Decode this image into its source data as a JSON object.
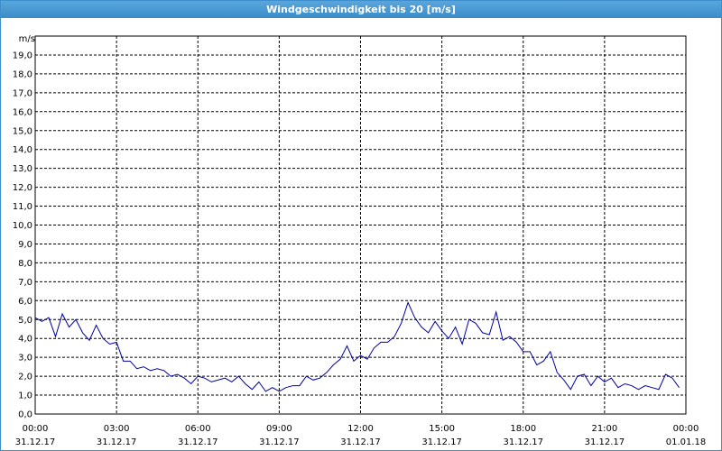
{
  "chart_data": {
    "type": "line",
    "title": "Windgeschwindigkeit bis 20 [m/s]",
    "y_label": "m/s",
    "x": [
      0,
      0.25,
      0.5,
      0.75,
      1,
      1.25,
      1.5,
      1.75,
      2,
      2.25,
      2.5,
      2.75,
      3,
      3.25,
      3.5,
      3.75,
      4,
      4.25,
      4.5,
      4.75,
      5,
      5.25,
      5.5,
      5.75,
      6,
      6.25,
      6.5,
      6.75,
      7,
      7.25,
      7.5,
      7.75,
      8,
      8.25,
      8.5,
      8.75,
      9,
      9.25,
      9.5,
      9.75,
      10,
      10.25,
      10.5,
      10.75,
      11,
      11.25,
      11.5,
      11.75,
      12,
      12.25,
      12.5,
      12.75,
      13,
      13.25,
      13.5,
      13.75,
      14,
      14.25,
      14.5,
      14.75,
      15,
      15.25,
      15.5,
      15.75,
      16,
      16.25,
      16.5,
      16.75,
      17,
      17.25,
      17.5,
      17.75,
      18,
      18.25,
      18.5,
      18.75,
      19,
      19.25,
      19.5,
      19.75,
      20,
      20.25,
      20.5,
      20.75,
      21,
      21.25,
      21.5,
      21.75,
      22,
      22.25,
      22.5,
      22.75,
      23,
      23.25,
      23.5,
      23.75
    ],
    "series": [
      {
        "name": "Windgeschwindigkeit",
        "color": "#0000a0",
        "values": [
          5.1,
          4.9,
          5.1,
          4.1,
          5.3,
          4.6,
          5.0,
          4.3,
          3.9,
          4.7,
          4.0,
          3.7,
          3.8,
          2.8,
          2.8,
          2.4,
          2.5,
          2.3,
          2.4,
          2.3,
          2.0,
          2.1,
          1.9,
          1.6,
          2.0,
          1.9,
          1.7,
          1.8,
          1.9,
          1.7,
          2.0,
          1.6,
          1.3,
          1.7,
          1.2,
          1.4,
          1.2,
          1.4,
          1.5,
          1.5,
          2.0,
          1.8,
          1.9,
          2.2,
          2.6,
          2.9,
          3.6,
          2.8,
          3.1,
          2.9,
          3.5,
          3.8,
          3.8,
          4.1,
          4.8,
          5.9,
          5.1,
          4.6,
          4.3,
          4.9,
          4.4,
          4.0,
          4.6,
          3.7,
          5.0,
          4.8,
          4.3,
          4.2,
          5.4,
          3.9,
          4.1,
          3.8,
          3.3,
          3.3,
          2.6,
          2.8,
          3.3,
          2.2,
          1.8,
          1.3,
          2.0,
          2.1,
          1.5,
          2.0,
          1.7,
          1.9,
          1.4,
          1.6,
          1.5,
          1.3,
          1.5,
          1.4,
          1.3,
          2.1,
          1.9,
          1.4
        ]
      }
    ],
    "xlim": [
      0,
      24
    ],
    "xticks": [
      {
        "value": 0,
        "label": "00:00"
      },
      {
        "value": 3,
        "label": "03:00"
      },
      {
        "value": 6,
        "label": "06:00"
      },
      {
        "value": 9,
        "label": "09:00"
      },
      {
        "value": 12,
        "label": "12:00"
      },
      {
        "value": 15,
        "label": "15:00"
      },
      {
        "value": 18,
        "label": "18:00"
      },
      {
        "value": 21,
        "label": "21:00"
      },
      {
        "value": 24,
        "label": "00:00"
      }
    ],
    "xtick_dates": [
      "31.12.17",
      "31.12.17",
      "31.12.17",
      "31.12.17",
      "31.12.17",
      "31.12.17",
      "31.12.17",
      "31.12.17",
      "01.01.18"
    ],
    "ylim": [
      0,
      20
    ],
    "yticks": [
      {
        "value": 0,
        "label": "0,0"
      },
      {
        "value": 1,
        "label": "1,0"
      },
      {
        "value": 2,
        "label": "2,0"
      },
      {
        "value": 3,
        "label": "3,0"
      },
      {
        "value": 4,
        "label": "4,0"
      },
      {
        "value": 5,
        "label": "5,0"
      },
      {
        "value": 6,
        "label": "6,0"
      },
      {
        "value": 7,
        "label": "7,0"
      },
      {
        "value": 8,
        "label": "8,0"
      },
      {
        "value": 9,
        "label": "9,0"
      },
      {
        "value": 10,
        "label": "10,0"
      },
      {
        "value": 11,
        "label": "11,0"
      },
      {
        "value": 12,
        "label": "12,0"
      },
      {
        "value": 13,
        "label": "13,0"
      },
      {
        "value": 14,
        "label": "14,0"
      },
      {
        "value": 15,
        "label": "15,0"
      },
      {
        "value": 16,
        "label": "16,0"
      },
      {
        "value": 17,
        "label": "17,0"
      },
      {
        "value": 18,
        "label": "18,0"
      },
      {
        "value": 19,
        "label": "19,0"
      }
    ],
    "grid": true
  }
}
